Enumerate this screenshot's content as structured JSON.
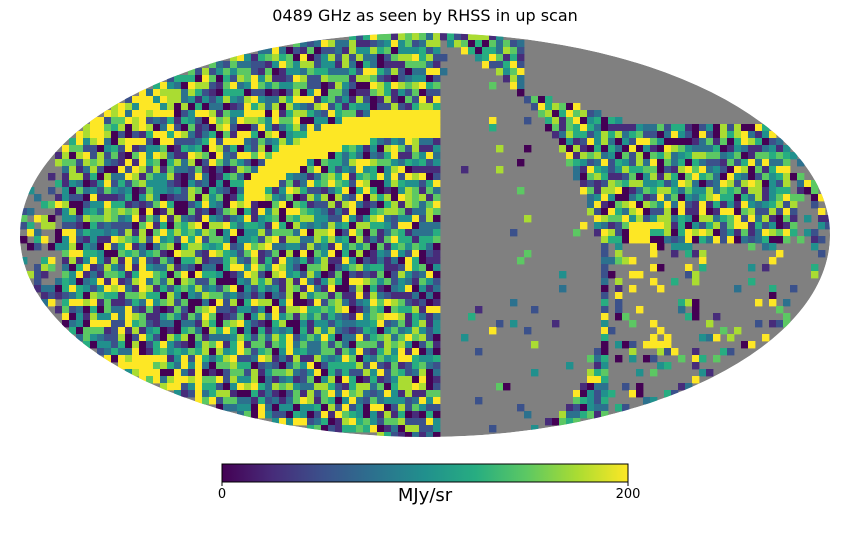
{
  "chart_data": {
    "type": "heatmap",
    "projection": "mollweide",
    "title": "0489 GHz as seen by RHSS in up scan",
    "colormap": "viridis",
    "missing_color": "#808080",
    "colorbar": {
      "min": 0,
      "max": 200,
      "min_label": "0",
      "max_label": "200",
      "label": "MJy/sr",
      "orientation": "horizontal",
      "placement": "bottom"
    }
  }
}
